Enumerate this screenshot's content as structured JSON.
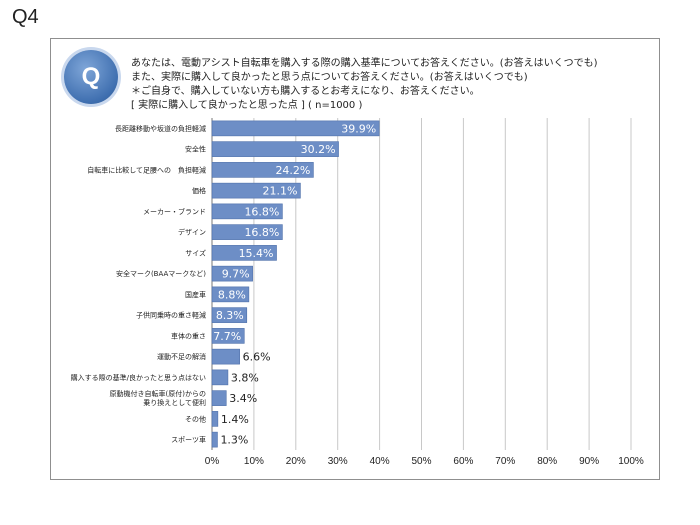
{
  "question_number": "Q4",
  "badge_letter": "Q",
  "question_lines": [
    "あなたは、電動アシスト自転車を購入する際の購入基準についてお答えください。(お答えはいくつでも)",
    "また、実際に購入して良かったと思う点についてお答えください。(お答えはいくつでも)",
    "＊ご自身で、購入していない方も購入するとお考えになり、お答えください。",
    "[ 実際に購入して良かったと思った点 ]  ( n=1000 )"
  ],
  "colors": {
    "bar": "#6d8ec6",
    "bar_edge": "#4e70aa",
    "grid": "#c8c8c8",
    "axis": "#777777"
  },
  "chart_data": {
    "type": "bar",
    "orientation": "horizontal",
    "categories": [
      [
        "長距離移動や坂道の負担軽減"
      ],
      [
        "安全性"
      ],
      [
        "自転車に比較して足腰への　負担軽減"
      ],
      [
        "価格"
      ],
      [
        "メーカー・ブランド"
      ],
      [
        "デザイン"
      ],
      [
        "サイズ"
      ],
      [
        "安全マーク(BAAマークなど)"
      ],
      [
        "国産車"
      ],
      [
        "子供同乗時の重さ軽減"
      ],
      [
        "車体の重さ"
      ],
      [
        "運動不足の解消"
      ],
      [
        "購入する際の基準/良かったと思う点はない"
      ],
      [
        "原動機付き自転車(原付)からの",
        "乗り換えとして便利"
      ],
      [
        "その他"
      ],
      [
        "スポーツ車"
      ]
    ],
    "values": [
      39.9,
      30.2,
      24.2,
      21.1,
      16.8,
      16.8,
      15.4,
      9.7,
      8.8,
      8.3,
      7.7,
      6.6,
      3.8,
      3.4,
      1.4,
      1.3
    ],
    "value_labels": [
      "39.9%",
      "30.2%",
      "24.2%",
      "21.1%",
      "16.8%",
      "16.8%",
      "15.4%",
      "9.7%",
      "8.8%",
      "8.3%",
      "7.7%",
      "6.6%",
      "3.8%",
      "3.4%",
      "1.4%",
      "1.3%"
    ],
    "xlim": [
      0,
      100
    ],
    "xticks": [
      "0%",
      "10%",
      "20%",
      "30%",
      "40%",
      "50%",
      "60%",
      "70%",
      "80%",
      "90%",
      "100%"
    ],
    "grid": true
  }
}
